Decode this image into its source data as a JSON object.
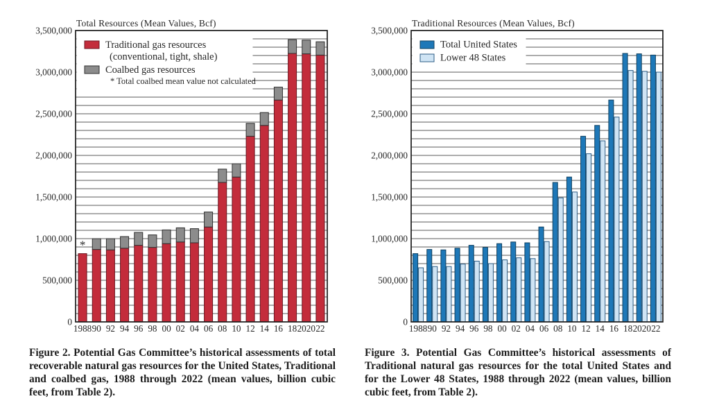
{
  "figures": {
    "figure2": {
      "caption": "Figure 2. Potential Gas Committee’s historical assessments of total recoverable natural gas resources for the United States, Traditional and coalbed gas, 1988 through 2022 (mean values, billion cubic feet, from Table 2)."
    },
    "figure3": {
      "caption": "Figure 3. Potential Gas Committee’s historical assessments of Traditional natural gas resources for the total United States and for the Lower 48 States, 1988 through 2022 (mean values, billion cubic feet, from Table 2)."
    }
  },
  "chart_data": [
    {
      "type": "bar",
      "subtype": "stacked",
      "title": "Total Resources (Mean Values, Bcf)",
      "unit": "Bcf",
      "categories": [
        1988,
        1990,
        1992,
        1994,
        1996,
        1998,
        2000,
        2002,
        2004,
        2006,
        2008,
        2010,
        2012,
        2014,
        2016,
        2018,
        2020,
        2022
      ],
      "x_tick_labels": [
        "1988",
        "90",
        "92",
        "94",
        "96",
        "98",
        "00",
        "02",
        "04",
        "06",
        "08",
        "10",
        "12",
        "14",
        "16",
        "18",
        "2020",
        "22"
      ],
      "series": [
        {
          "name": "Traditional gas resources (conventional, tight, shale)",
          "color": "#c32c3b",
          "values": [
            820000,
            870000,
            865000,
            885000,
            920000,
            895000,
            940000,
            960000,
            950000,
            1140000,
            1675000,
            1740000,
            2230000,
            2360000,
            2665000,
            3225000,
            3220000,
            3205000
          ]
        },
        {
          "name": "Coalbed gas resources",
          "color": "#8c8c8c",
          "values": [
            0,
            130000,
            135000,
            140000,
            155000,
            150000,
            165000,
            170000,
            170000,
            180000,
            160000,
            160000,
            155000,
            155000,
            155000,
            165000,
            165000,
            160000
          ]
        }
      ],
      "legend_lines": [
        "Traditional gas resources",
        "(conventional, tight, shale)",
        "Coalbed gas resources",
        "* Total coalbed mean value not calculated"
      ],
      "annotation": {
        "text": "*",
        "category": 1988,
        "note": "Total coalbed mean value not calculated"
      },
      "ylim": [
        0,
        3500000
      ],
      "y_tick_labels": [
        "3,500,000",
        "3,000,000",
        "2,500,000",
        "2,000,000",
        "1,500,000",
        "1,000,000",
        "500,000",
        "0"
      ],
      "y_major_interval": 500000,
      "gridline_interval": 100000,
      "grid": true,
      "legend_position": "top-left-inside"
    },
    {
      "type": "bar",
      "subtype": "grouped",
      "title": "Traditional Resources (Mean Values, Bcf)",
      "unit": "Bcf",
      "categories": [
        1988,
        1990,
        1992,
        1994,
        1996,
        1998,
        2000,
        2002,
        2004,
        2006,
        2008,
        2010,
        2012,
        2014,
        2016,
        2018,
        2020,
        2022
      ],
      "x_tick_labels": [
        "1988",
        "90",
        "92",
        "94",
        "96",
        "98",
        "00",
        "02",
        "04",
        "06",
        "08",
        "10",
        "12",
        "14",
        "16",
        "18",
        "2020",
        "22"
      ],
      "series": [
        {
          "name": "Total United States",
          "color": "#1e78b8",
          "values": [
            820000,
            870000,
            865000,
            885000,
            920000,
            895000,
            940000,
            960000,
            950000,
            1140000,
            1675000,
            1740000,
            2230000,
            2360000,
            2665000,
            3225000,
            3220000,
            3205000
          ]
        },
        {
          "name": "Lower 48 States",
          "color": "#cfe4f4",
          "values": [
            650000,
            665000,
            665000,
            695000,
            730000,
            700000,
            745000,
            770000,
            760000,
            965000,
            1490000,
            1560000,
            2020000,
            2175000,
            2460000,
            3020000,
            3010000,
            3000000
          ]
        }
      ],
      "legend_lines": [
        "Total United States",
        "Lower 48 States"
      ],
      "ylim": [
        0,
        3500000
      ],
      "y_tick_labels": [
        "3,500,000",
        "3,000,000",
        "2,500,000",
        "2,000,000",
        "1,500,000",
        "1,000,000",
        "500,000",
        "0"
      ],
      "y_major_interval": 500000,
      "gridline_interval": 100000,
      "grid": true,
      "legend_position": "top-left-inside"
    }
  ]
}
